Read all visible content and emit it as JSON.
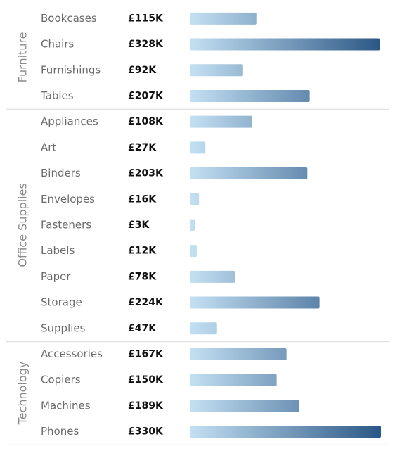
{
  "chart_data": {
    "type": "bar",
    "orientation": "horizontal",
    "grouped_by": "category",
    "xlim": [
      0,
      330
    ],
    "unit": "£K",
    "colors": {
      "bar_start": "#c4e0f3",
      "bar_end": "#2b5785",
      "separator": "#d9d9d9"
    },
    "groups": [
      {
        "name": "Furniture",
        "items": [
          {
            "category": "Bookcases",
            "value": 115,
            "label": "£115K"
          },
          {
            "category": "Chairs",
            "value": 328,
            "label": "£328K"
          },
          {
            "category": "Furnishings",
            "value": 92,
            "label": "£92K"
          },
          {
            "category": "Tables",
            "value": 207,
            "label": "£207K"
          }
        ]
      },
      {
        "name": "Office Supplies",
        "items": [
          {
            "category": "Appliances",
            "value": 108,
            "label": "£108K"
          },
          {
            "category": "Art",
            "value": 27,
            "label": "£27K"
          },
          {
            "category": "Binders",
            "value": 203,
            "label": "£203K"
          },
          {
            "category": "Envelopes",
            "value": 16,
            "label": "£16K"
          },
          {
            "category": "Fasteners",
            "value": 3,
            "label": "£3K"
          },
          {
            "category": "Labels",
            "value": 12,
            "label": "£12K"
          },
          {
            "category": "Paper",
            "value": 78,
            "label": "£78K"
          },
          {
            "category": "Storage",
            "value": 224,
            "label": "£224K"
          },
          {
            "category": "Supplies",
            "value": 47,
            "label": "£47K"
          }
        ]
      },
      {
        "name": "Technology",
        "items": [
          {
            "category": "Accessories",
            "value": 167,
            "label": "£167K"
          },
          {
            "category": "Copiers",
            "value": 150,
            "label": "£150K"
          },
          {
            "category": "Machines",
            "value": 189,
            "label": "£189K"
          },
          {
            "category": "Phones",
            "value": 330,
            "label": "£330K"
          }
        ]
      }
    ]
  }
}
